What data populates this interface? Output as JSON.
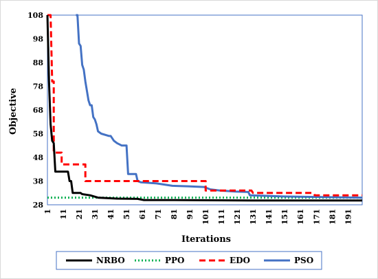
{
  "chart_data": {
    "type": "line",
    "xlabel": "Iterations",
    "ylabel": "Objective",
    "xlim": [
      1,
      200
    ],
    "ylim": [
      28,
      108
    ],
    "xticks": [
      1,
      11,
      21,
      31,
      41,
      51,
      61,
      71,
      81,
      91,
      101,
      111,
      121,
      131,
      141,
      151,
      161,
      171,
      181,
      191
    ],
    "yticks": [
      28,
      38,
      48,
      58,
      68,
      78,
      88,
      98,
      108
    ],
    "grid": false,
    "legend_position": "bottom",
    "series": [
      {
        "name": "NRBO",
        "color": "#000000",
        "style": "solid",
        "points": [
          [
            1,
            108
          ],
          [
            2,
            80
          ],
          [
            3,
            62
          ],
          [
            4,
            55
          ],
          [
            5,
            54
          ],
          [
            6,
            42
          ],
          [
            14,
            42
          ],
          [
            15,
            38
          ],
          [
            16,
            38
          ],
          [
            17,
            33
          ],
          [
            22,
            33
          ],
          [
            23,
            32.5
          ],
          [
            28,
            32
          ],
          [
            33,
            31
          ],
          [
            45,
            30.6
          ],
          [
            58,
            30.5
          ],
          [
            62,
            30
          ],
          [
            80,
            30
          ],
          [
            130,
            29.8
          ],
          [
            200,
            29.8
          ]
        ]
      },
      {
        "name": "PPO",
        "color": "#00b050",
        "style": "dotted",
        "points": [
          [
            1,
            31
          ],
          [
            200,
            31
          ]
        ]
      },
      {
        "name": "EDO",
        "color": "#ff0000",
        "style": "dashed",
        "points": [
          [
            1,
            108
          ],
          [
            3,
            108
          ],
          [
            4,
            80
          ],
          [
            5,
            80
          ],
          [
            5,
            50
          ],
          [
            10,
            50
          ],
          [
            10,
            45
          ],
          [
            25,
            45
          ],
          [
            25,
            38
          ],
          [
            101,
            38
          ],
          [
            101,
            34
          ],
          [
            130,
            34
          ],
          [
            131,
            33
          ],
          [
            169,
            33
          ],
          [
            170,
            32
          ],
          [
            200,
            32
          ]
        ]
      },
      {
        "name": "PSO",
        "color": "#4472c4",
        "style": "solid",
        "points": [
          [
            19,
            108
          ],
          [
            20,
            108
          ],
          [
            21,
            96
          ],
          [
            22,
            95
          ],
          [
            23,
            87
          ],
          [
            24,
            85
          ],
          [
            25,
            80
          ],
          [
            26,
            76
          ],
          [
            27,
            72
          ],
          [
            28,
            70
          ],
          [
            29,
            70
          ],
          [
            30,
            65
          ],
          [
            31,
            64
          ],
          [
            32,
            62
          ],
          [
            33,
            59
          ],
          [
            35,
            58
          ],
          [
            40,
            57
          ],
          [
            41,
            57
          ],
          [
            43,
            55
          ],
          [
            45,
            54
          ],
          [
            48,
            53
          ],
          [
            51,
            53
          ],
          [
            52,
            41
          ],
          [
            57,
            41
          ],
          [
            58,
            38
          ],
          [
            60,
            37.5
          ],
          [
            70,
            37
          ],
          [
            80,
            36
          ],
          [
            90,
            35.8
          ],
          [
            100,
            35.5
          ],
          [
            104,
            34.5
          ],
          [
            110,
            34
          ],
          [
            120,
            33.6
          ],
          [
            128,
            33.4
          ],
          [
            129,
            32
          ],
          [
            150,
            31.5
          ],
          [
            200,
            31
          ]
        ]
      }
    ]
  }
}
